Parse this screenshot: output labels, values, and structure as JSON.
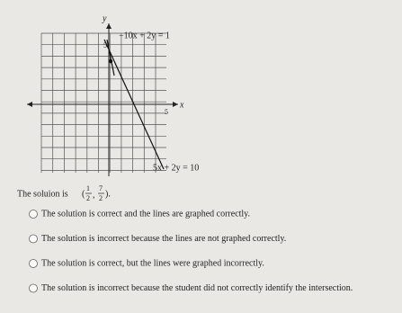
{
  "graph": {
    "y_axis_label": "y",
    "x_axis_label": "x",
    "y_tick_label": "5",
    "x_tick_label": "5",
    "line_1_label": "−10x + 2y = 1",
    "line_2_label": "5x + 2y = 10"
  },
  "solution": {
    "prefix": "The soluion is",
    "open": "(",
    "x": {
      "num": "1",
      "den": "2"
    },
    "sep": ",",
    "y": {
      "num": "7",
      "den": "2"
    },
    "close": ")."
  },
  "options": [
    "The solution is correct and the lines are graphed correctly.",
    "The solution is incorrect because the lines are not graphed correctly.",
    "The solution is correct, but the lines were graphed incorrectly.",
    "The solution is incorrect because the student did not correctly identify the intersection."
  ]
}
